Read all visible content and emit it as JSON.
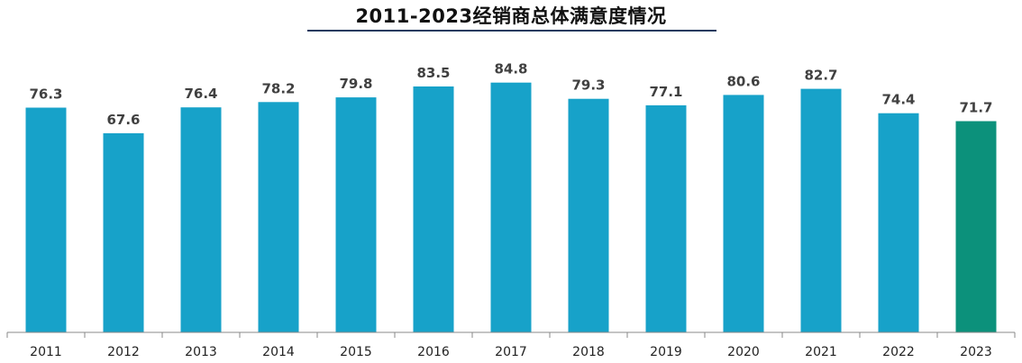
{
  "chart_data": {
    "type": "bar",
    "title": "2011-2023经销商总体满意度情况",
    "categories": [
      "2011",
      "2012",
      "2013",
      "2014",
      "2015",
      "2016",
      "2017",
      "2018",
      "2019",
      "2020",
      "2021",
      "2022",
      "2023"
    ],
    "values": [
      76.3,
      67.6,
      76.4,
      78.2,
      79.8,
      83.5,
      84.8,
      79.3,
      77.1,
      80.6,
      82.7,
      74.4,
      71.7
    ],
    "value_labels": [
      "76.3",
      "67.6",
      "76.4",
      "78.2",
      "79.8",
      "83.5",
      "84.8",
      "79.3",
      "77.1",
      "80.6",
      "82.7",
      "74.4",
      "71.7"
    ],
    "xlabel": "",
    "ylabel": "",
    "ylim": [
      0,
      100
    ],
    "grid": false,
    "legend": "none",
    "colors": {
      "bar": "#17a2c9",
      "highlight_bar": "#0c917b",
      "axis": "#888888",
      "title_underline": "#1f3a5f"
    },
    "highlight_index": 12
  }
}
